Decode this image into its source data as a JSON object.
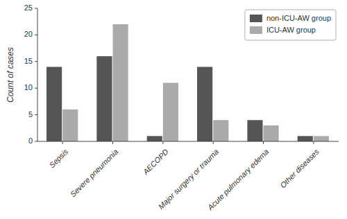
{
  "chart_data": {
    "type": "bar",
    "ylabel": "Count of cases",
    "categories": [
      "Sepsis",
      "Severe pneumonia",
      "AECOPD",
      "Major surgery or trauma",
      "Acute pulmonary edema",
      "Other diseases"
    ],
    "series": [
      {
        "name": "non-ICU-AW group",
        "color": "#555555",
        "values": [
          14,
          16,
          1,
          14,
          4,
          1
        ]
      },
      {
        "name": "ICU-AW group",
        "color": "#aaaaaa",
        "values": [
          6,
          22,
          11,
          4,
          3,
          1
        ]
      }
    ],
    "ylim": [
      0,
      25
    ],
    "yticks": [
      0,
      5,
      10,
      15,
      20,
      25
    ],
    "grid": false,
    "legend": "upper right"
  }
}
